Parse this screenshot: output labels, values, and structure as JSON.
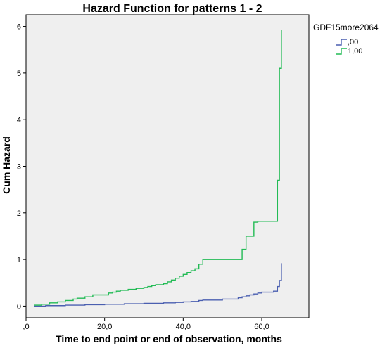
{
  "chart_data": {
    "type": "line",
    "step": true,
    "title": "Hazard Function for patterns 1 - 2",
    "xlabel": "Time to end point or end of observation, months",
    "ylabel": "Cum Hazard",
    "xlim": [
      0,
      72
    ],
    "ylim": [
      -0.25,
      6.25
    ],
    "xticks": [
      0,
      20,
      40,
      60
    ],
    "xtick_labels": [
      ",0",
      "20,0",
      "40,0",
      "60,0"
    ],
    "yticks": [
      0,
      1,
      2,
      3,
      4,
      5,
      6
    ],
    "ytick_labels": [
      "0",
      "1",
      "2",
      "3",
      "4",
      "5",
      "6"
    ],
    "grid": false,
    "background": "#efefef",
    "legend": {
      "title": "GDF15more2064",
      "position": "top-right"
    },
    "series": [
      {
        "name": ",00",
        "color": "#4a5fb0",
        "x": [
          2,
          5,
          10,
          15,
          20,
          25,
          30,
          35,
          38,
          40,
          42,
          44,
          45,
          50,
          54,
          55,
          56,
          57,
          58,
          59,
          60,
          63,
          64,
          64.5,
          65
        ],
        "y": [
          0,
          0.01,
          0.02,
          0.03,
          0.04,
          0.05,
          0.06,
          0.07,
          0.08,
          0.09,
          0.1,
          0.12,
          0.13,
          0.15,
          0.18,
          0.2,
          0.22,
          0.24,
          0.26,
          0.28,
          0.3,
          0.32,
          0.42,
          0.55,
          0.92
        ]
      },
      {
        "name": "1,00",
        "color": "#22bb55",
        "x": [
          2,
          4,
          6,
          8,
          10,
          12,
          13,
          15,
          17,
          21,
          22,
          23,
          24,
          26,
          28,
          30,
          31,
          32,
          33,
          35,
          36,
          37,
          38,
          39,
          40,
          41,
          42,
          43,
          44,
          45,
          55,
          56,
          58,
          59,
          64,
          64.5,
          65
        ],
        "y": [
          0.02,
          0.04,
          0.07,
          0.09,
          0.12,
          0.15,
          0.17,
          0.2,
          0.24,
          0.28,
          0.3,
          0.32,
          0.34,
          0.36,
          0.38,
          0.4,
          0.42,
          0.44,
          0.46,
          0.48,
          0.52,
          0.56,
          0.6,
          0.64,
          0.68,
          0.72,
          0.76,
          0.8,
          0.9,
          1.0,
          1.22,
          1.5,
          1.8,
          1.82,
          2.7,
          5.1,
          5.92
        ]
      }
    ]
  }
}
